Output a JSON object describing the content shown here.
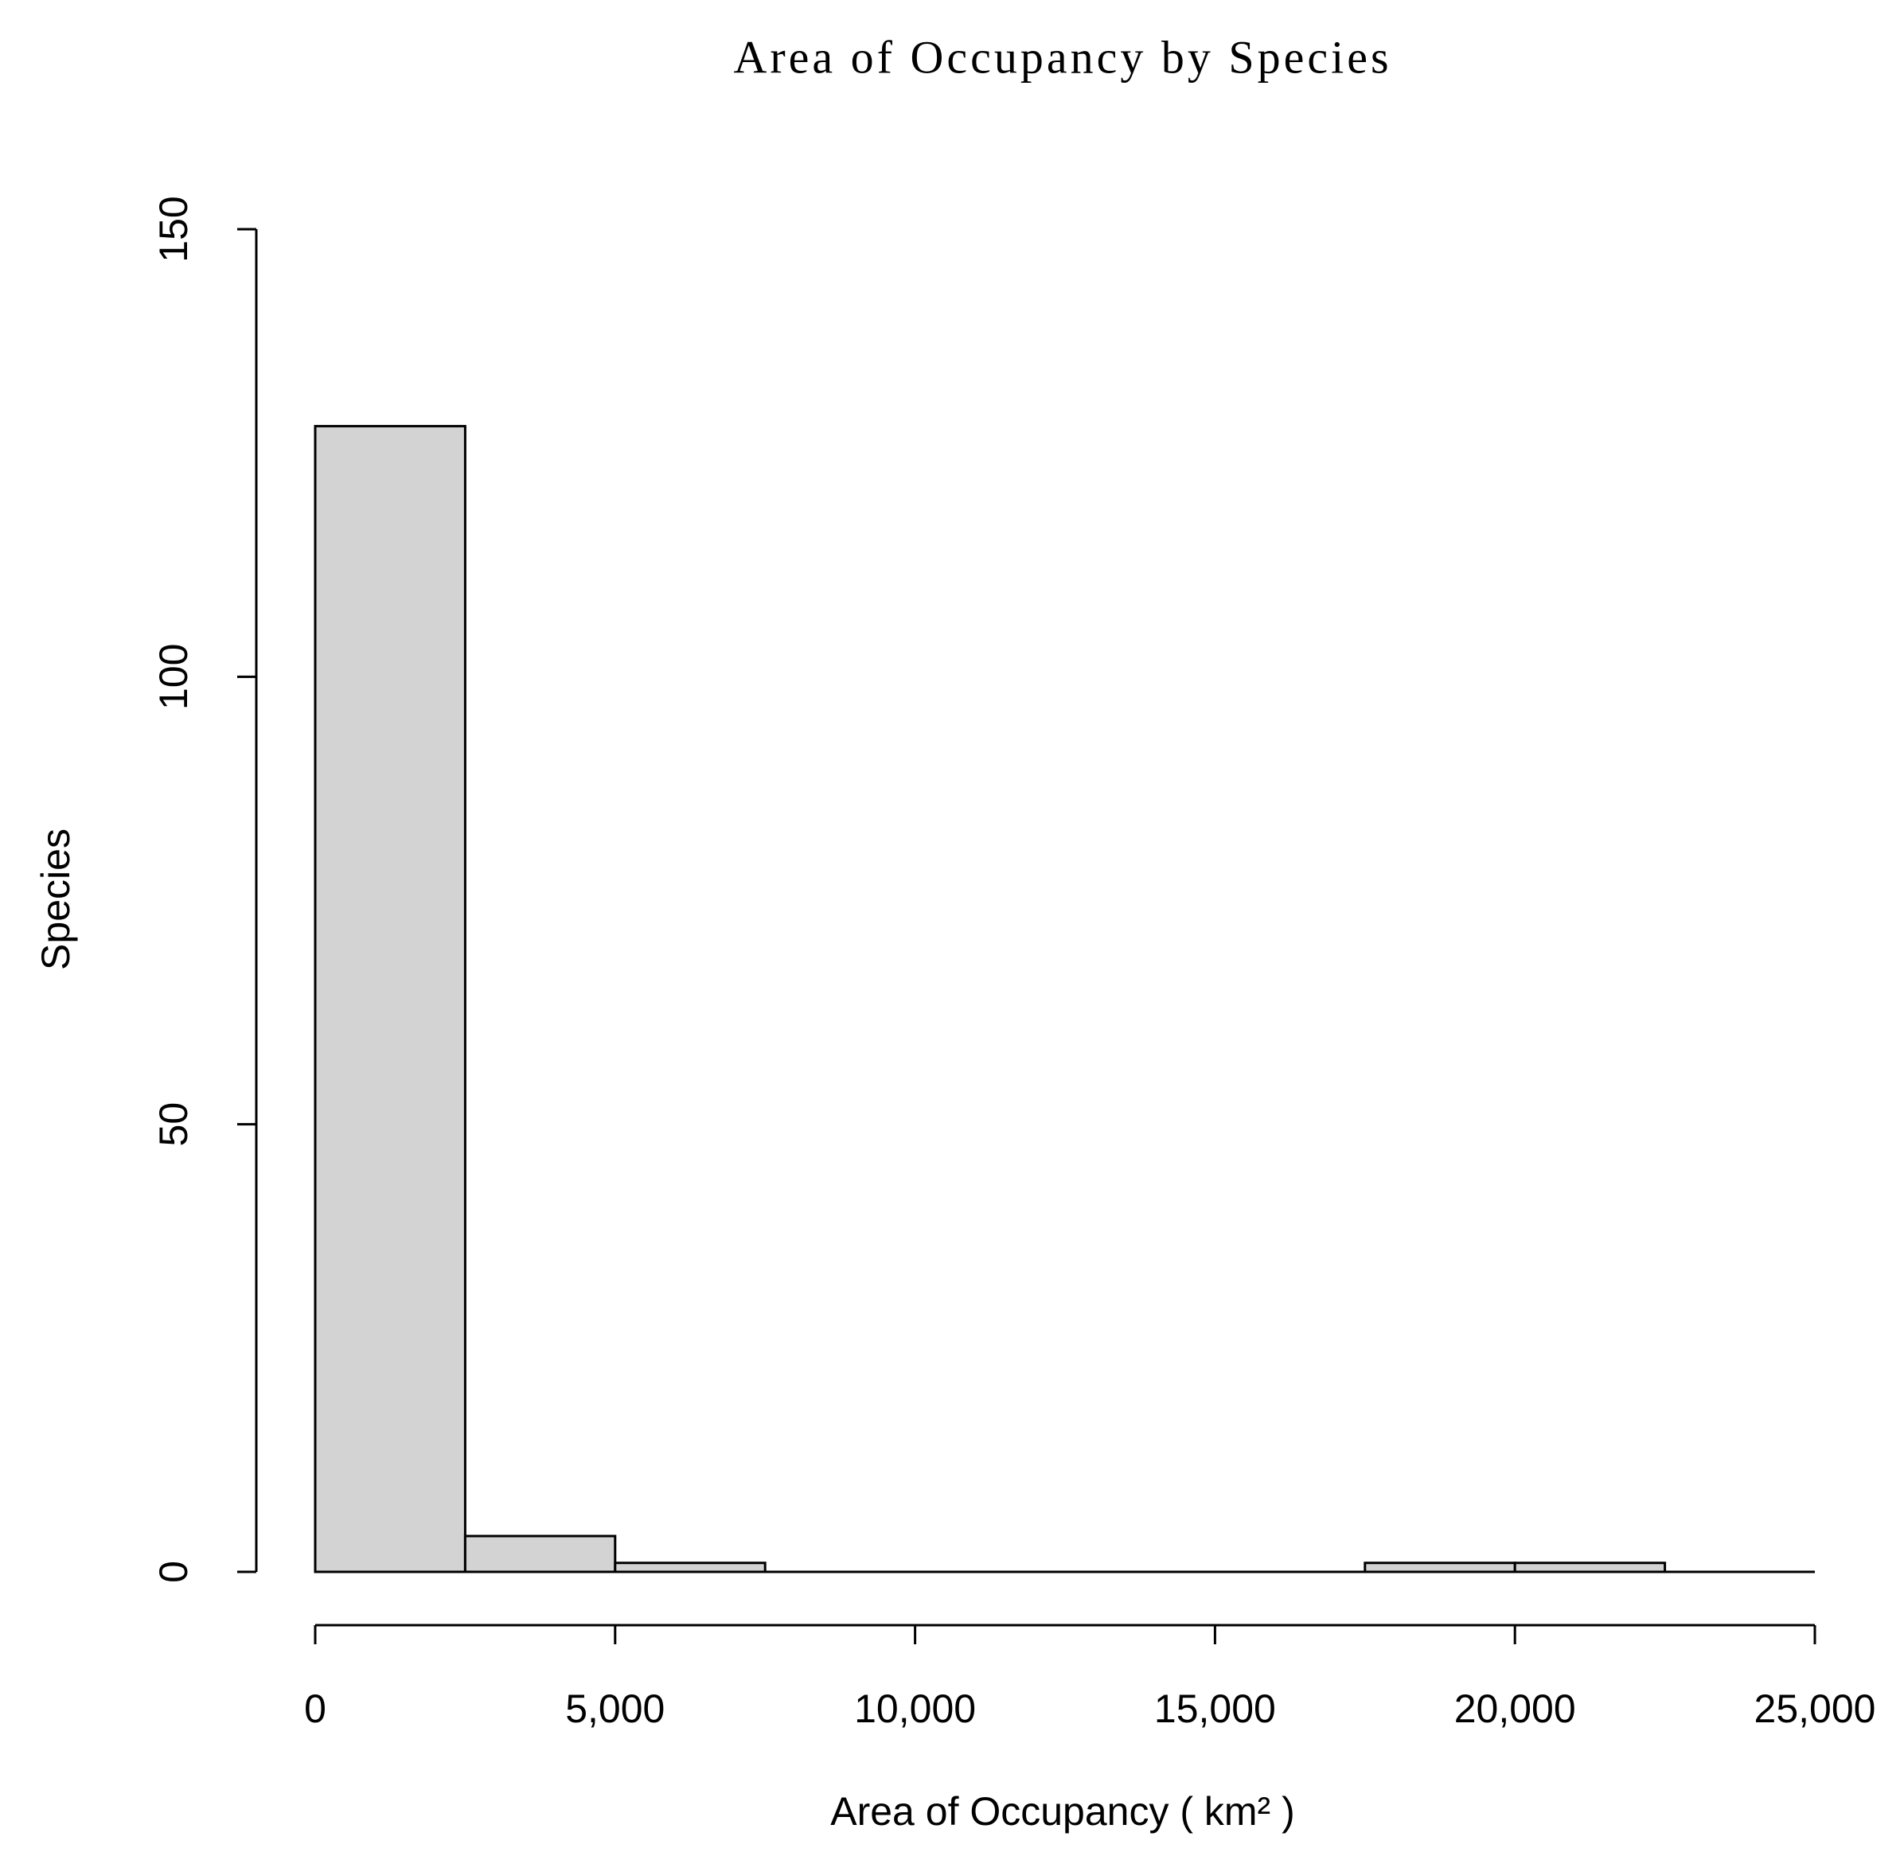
{
  "chart_data": {
    "type": "histogram",
    "title": "Area of Occupancy by Species",
    "x_label": "Area of Occupancy ( km² )",
    "y_label": "Species",
    "bins": [
      0,
      2500,
      5000,
      7500,
      10000,
      12500,
      15000,
      17500,
      20000,
      22500
    ],
    "counts": [
      128,
      4,
      1,
      0,
      0,
      0,
      0,
      1,
      1
    ],
    "color": "#d3d3d3",
    "xlim": [
      0,
      25000
    ],
    "xticks": [
      0,
      {
        "value": 5000,
        "label": "5,000"
      },
      {
        "value": 10000,
        "label": "10,000"
      },
      {
        "value": 15000,
        "label": "15,000"
      },
      {
        "value": 20000,
        "label": "20,000"
      },
      {
        "value": 25000,
        "label": "25,000"
      }
    ],
    "ylim": [
      0,
      150
    ],
    "yticks": [
      0,
      50,
      100,
      150
    ]
  }
}
